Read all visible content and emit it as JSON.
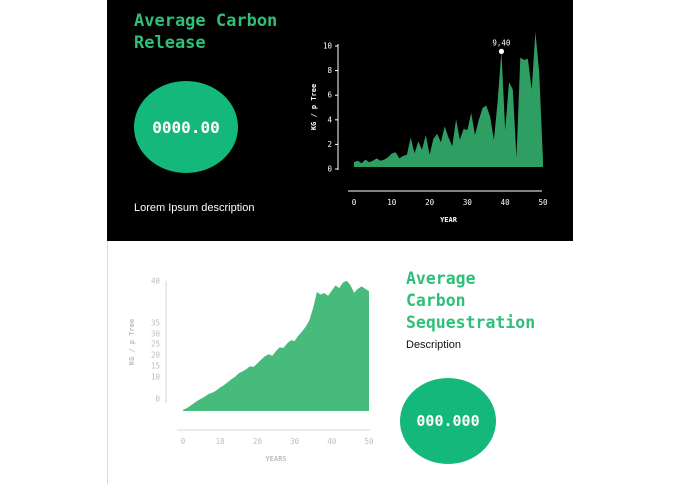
{
  "release": {
    "title": "Average Carbon\nRelease",
    "metric": "0000.00",
    "description": "Lorem Ipsum description"
  },
  "sequestration": {
    "title": "Average\nCarbon\nSequestration",
    "metric": "000.000",
    "description": "Description"
  },
  "colors": {
    "accent": "#2fbf78",
    "circle": "#13b87a",
    "area_top": "#2e9e63",
    "area_bottom": "#46bb7c",
    "axis_muted": "#c7c7c7"
  },
  "chart_data": [
    {
      "type": "area",
      "xlabel": "YEAR",
      "ylabel": "KG / p Tree",
      "xticks": [
        0,
        10,
        20,
        30,
        40,
        50
      ],
      "yticks": [
        0,
        2,
        4,
        6,
        8,
        10
      ],
      "xlim": [
        0,
        50
      ],
      "ylim": [
        0,
        10
      ],
      "annotation": {
        "x": 39,
        "y": 9.4,
        "label": "9,40"
      },
      "x": [
        0,
        1,
        2,
        3,
        4,
        5,
        6,
        7,
        8,
        9,
        10,
        11,
        12,
        13,
        14,
        15,
        16,
        17,
        18,
        19,
        20,
        21,
        22,
        23,
        24,
        25,
        26,
        27,
        28,
        29,
        30,
        31,
        32,
        33,
        34,
        35,
        36,
        37,
        38,
        39,
        40,
        41,
        42,
        43,
        44,
        45,
        46,
        47,
        48,
        49,
        50
      ],
      "y": [
        0.4,
        0.5,
        0.3,
        0.6,
        0.4,
        0.5,
        0.7,
        0.5,
        0.6,
        0.8,
        1.1,
        1.2,
        0.7,
        0.9,
        1.0,
        2.4,
        1.1,
        2.1,
        1.4,
        2.6,
        1.0,
        2.3,
        2.7,
        2.0,
        3.3,
        2.4,
        1.7,
        3.9,
        2.2,
        3.1,
        3.0,
        4.4,
        2.6,
        3.8,
        4.8,
        5.0,
        4.1,
        2.2,
        5.3,
        9.4,
        3.0,
        6.9,
        6.3,
        0.8,
        8.9,
        8.7,
        8.8,
        6.3,
        11.0,
        7.7,
        0.5
      ]
    },
    {
      "type": "area",
      "xlabel": "YEARS",
      "ylabel": "KG / p Tree",
      "xticks": [
        0,
        10,
        20,
        30,
        40,
        50
      ],
      "yticks": [
        0,
        10,
        15,
        20,
        25,
        30,
        35,
        40
      ],
      "xlim": [
        0,
        50
      ],
      "ylim": [
        0,
        40
      ],
      "x": [
        0,
        1,
        2,
        3,
        4,
        5,
        6,
        7,
        8,
        9,
        10,
        11,
        12,
        13,
        14,
        15,
        16,
        17,
        18,
        19,
        20,
        21,
        22,
        23,
        24,
        25,
        26,
        27,
        28,
        29,
        30,
        31,
        32,
        33,
        34,
        35,
        36,
        37,
        38,
        39,
        40,
        41,
        42,
        43,
        44,
        45,
        46,
        47,
        48,
        49,
        50
      ],
      "y": [
        0.3,
        0.8,
        1.5,
        2.3,
        3.0,
        3.6,
        4.2,
        4.9,
        5.3,
        5.9,
        6.7,
        7.4,
        8.2,
        9.1,
        9.8,
        10.8,
        11.3,
        11.9,
        12.8,
        12.6,
        13.6,
        14.7,
        15.6,
        16.2,
        15.8,
        17.1,
        18.2,
        18.0,
        19.3,
        20.2,
        20.0,
        21.5,
        22.7,
        24.1,
        26.0,
        29.5,
        34.0,
        33.3,
        33.7,
        32.9,
        34.4,
        35.9,
        35.1,
        36.7,
        37.2,
        36.0,
        33.8,
        34.9,
        35.6,
        34.9,
        34.2
      ]
    }
  ]
}
